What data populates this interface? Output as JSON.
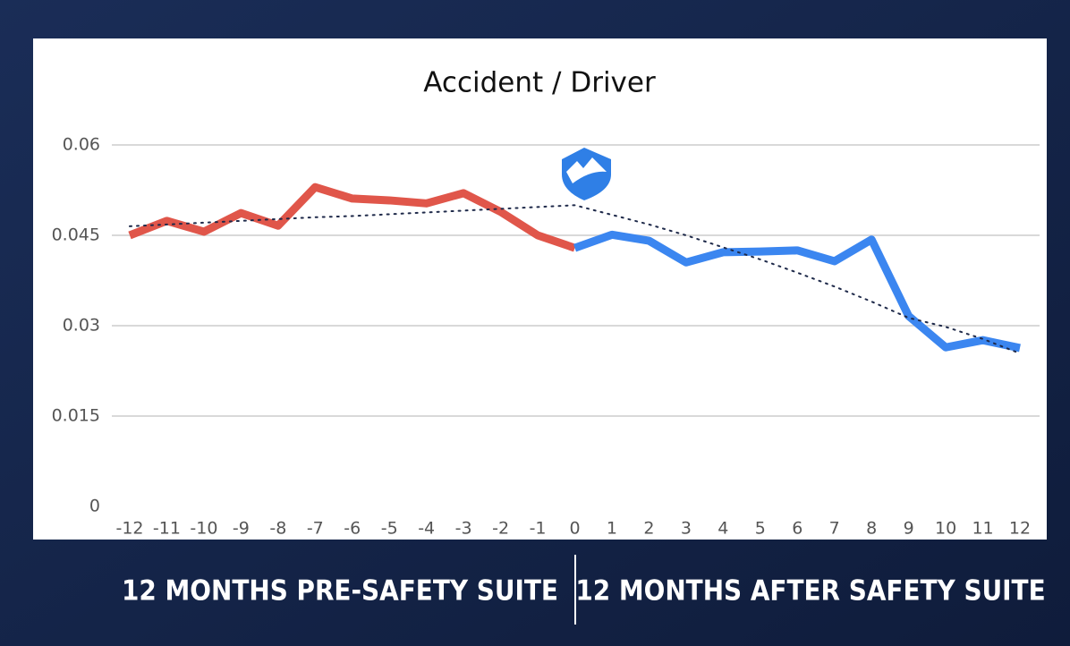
{
  "chart_data": {
    "type": "line",
    "title": "Accident / Driver",
    "x": [
      -12,
      -11,
      -10,
      -9,
      -8,
      -7,
      -6,
      -5,
      -4,
      -3,
      -2,
      -1,
      0,
      1,
      2,
      3,
      4,
      5,
      6,
      7,
      8,
      9,
      10,
      11,
      12
    ],
    "xlim": [
      -12,
      12
    ],
    "ylim": [
      0,
      0.06
    ],
    "yticks": [
      0,
      0.015,
      0.03,
      0.045,
      0.06
    ],
    "grid": true,
    "series": [
      {
        "color": "#e0564a",
        "style": "solid",
        "values": [
          0.045,
          0.0474,
          0.0456,
          0.0487,
          0.0466,
          0.053,
          0.0511,
          0.0508,
          0.0503,
          0.052,
          0.0489,
          0.045,
          0.0429,
          null,
          null,
          null,
          null,
          null,
          null,
          null,
          null,
          null,
          null,
          null,
          null
        ]
      },
      {
        "color": "#3b86f0",
        "style": "solid",
        "values": [
          null,
          null,
          null,
          null,
          null,
          null,
          null,
          null,
          null,
          null,
          null,
          null,
          0.0429,
          0.0451,
          0.0441,
          0.0405,
          0.0422,
          0.0423,
          0.0425,
          0.0407,
          0.0443,
          0.0316,
          0.0264,
          0.0276,
          0.0263
        ]
      },
      {
        "color": "#1f2a4a",
        "style": "dotted",
        "values": [
          0.0465,
          0.0468,
          0.0471,
          0.0474,
          0.0477,
          0.048,
          0.0482,
          0.0485,
          0.0488,
          0.0491,
          0.0494,
          0.0497,
          0.05,
          0.0484,
          0.0468,
          0.045,
          0.043,
          0.041,
          0.0388,
          0.0365,
          0.034,
          0.0313,
          0.0298,
          0.0278,
          0.0254
        ]
      }
    ]
  },
  "captions": [
    "12 MONTHS PRE-SAFETY SUITE",
    "12 MONTHS AFTER SAFETY SUITE"
  ]
}
